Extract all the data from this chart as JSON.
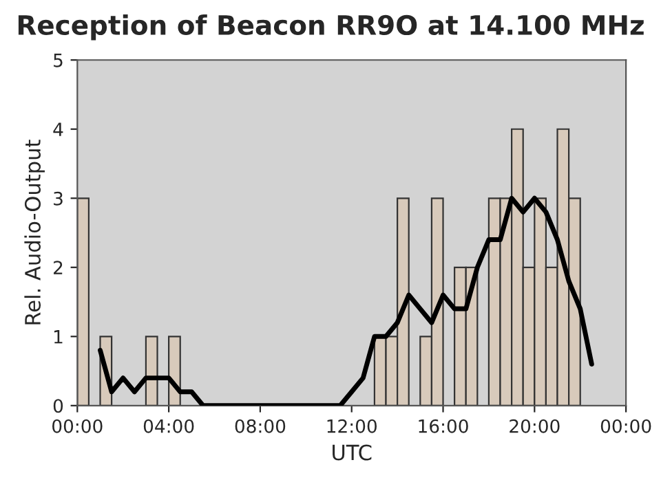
{
  "chart_data": {
    "type": "histogram",
    "title": "Reception of Beacon RR9O at 14.100 MHz",
    "xlabel": "UTC",
    "ylabel": "Rel. Audio-Output",
    "series": [
      {
        "color": "#d8cabb",
        "bins": [
          0,
          0.5,
          1,
          1.5,
          2,
          2.5,
          3,
          3.5,
          4,
          4.5,
          5,
          5.5,
          6,
          6.5,
          7,
          7.5,
          8,
          8.5,
          9,
          9.5,
          10,
          10.5,
          11,
          11.5,
          12,
          12.5,
          13,
          13.5,
          14,
          14.5,
          15,
          15.5,
          16,
          16.5,
          17,
          17.5,
          18,
          18.5,
          19,
          19.5,
          20,
          20.5,
          21,
          21.5,
          22
        ],
        "values": [
          3,
          0,
          1,
          0,
          0,
          0,
          1,
          0,
          1,
          0,
          0,
          0,
          0,
          0,
          0,
          0,
          0,
          0,
          0,
          0,
          0,
          0,
          0,
          0,
          0,
          0,
          1,
          1,
          3,
          0,
          1,
          3,
          0,
          2,
          2,
          0,
          3,
          3,
          4,
          2,
          3,
          2,
          4,
          3
        ]
      },
      {
        "type": "line",
        "color": "#000000",
        "x": [
          1,
          1.5,
          2,
          2.5,
          3,
          3.5,
          4,
          4.5,
          5,
          5.5,
          6,
          6.5,
          7,
          7.5,
          8,
          8.5,
          9,
          9.5,
          10,
          10.5,
          11,
          11.5,
          12,
          12.5,
          13,
          13.5,
          14,
          14.5,
          15,
          15.5,
          16,
          16.5,
          17,
          17.5,
          18,
          18.5,
          19,
          19.5,
          20,
          20.5,
          21,
          21.5,
          22,
          22.5
        ],
        "values": [
          0.8,
          0.2,
          0.4,
          0.2,
          0.4,
          0.4,
          0.4,
          0.2,
          0.2,
          0,
          0,
          0,
          0,
          0,
          0,
          0,
          0,
          0,
          0,
          0,
          0,
          0,
          0.2,
          0.4,
          1,
          1,
          1.2,
          1.6,
          1.4,
          1.2,
          1.6,
          1.4,
          1.4,
          2,
          2.4,
          2.4,
          3,
          2.8,
          3,
          2.8,
          2.4,
          1.8,
          1.4,
          0.6
        ]
      }
    ],
    "xlim": [
      0,
      24
    ],
    "xticks": [
      {
        "value": 0,
        "label": "00:00"
      },
      {
        "value": 4,
        "label": "04:00"
      },
      {
        "value": 8,
        "label": "08:00"
      },
      {
        "value": 12,
        "label": "12:00"
      },
      {
        "value": 16,
        "label": "16:00"
      },
      {
        "value": 20,
        "label": "20:00"
      },
      {
        "value": 24,
        "label": "00:00"
      }
    ],
    "ylim": [
      0,
      5
    ],
    "yticks": [
      0,
      1,
      2,
      3,
      4,
      5
    ],
    "grid": false,
    "legend": false
  }
}
